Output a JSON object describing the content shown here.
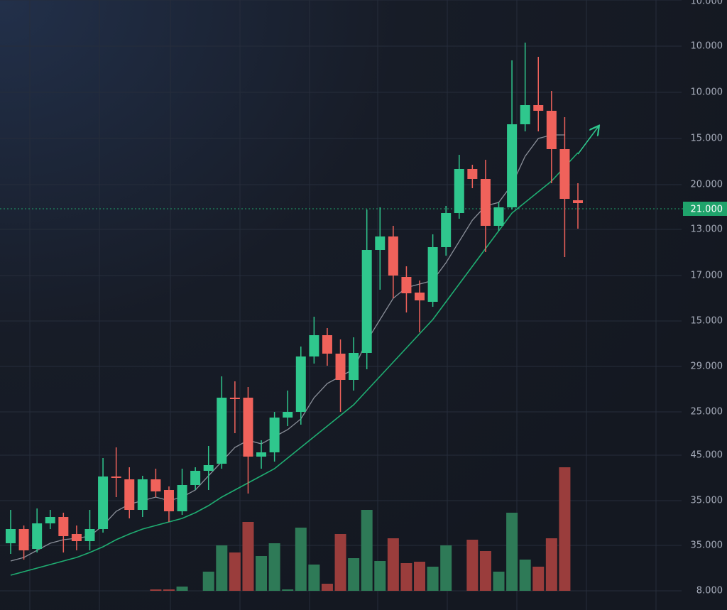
{
  "chart_data": {
    "type": "candlestick",
    "categories": [
      null,
      null,
      null,
      null,
      null,
      null,
      null,
      null,
      null,
      null,
      null,
      null,
      null,
      null,
      null,
      null,
      null,
      null,
      null,
      null,
      null,
      null,
      null,
      null,
      null,
      null,
      null,
      null,
      null,
      null,
      null,
      null,
      null,
      null,
      null,
      null,
      null,
      null,
      null,
      null,
      null,
      null,
      null,
      null
    ],
    "open": [
      95,
      115,
      87,
      123,
      132,
      108,
      98,
      115,
      189,
      185,
      142,
      185,
      170,
      140,
      177,
      197,
      207,
      300,
      300,
      217,
      223,
      272,
      280,
      358,
      388,
      362,
      325,
      363,
      508,
      527,
      470,
      448,
      435,
      512,
      560,
      622,
      608,
      542,
      568,
      685,
      712,
      704,
      650,
      578
    ],
    "high": [
      142,
      120,
      144,
      142,
      138,
      120,
      142,
      215,
      230,
      202,
      190,
      200,
      175,
      200,
      202,
      232,
      330,
      323,
      315,
      240,
      280,
      310,
      372,
      414,
      398,
      382,
      385,
      565,
      568,
      542,
      485,
      465,
      530,
      570,
      642,
      628,
      635,
      575,
      775,
      800,
      780,
      732,
      695,
      602
    ],
    "low": [
      80,
      72,
      82,
      115,
      82,
      85,
      85,
      110,
      160,
      130,
      132,
      160,
      125,
      135,
      170,
      170,
      200,
      250,
      165,
      200,
      210,
      260,
      262,
      348,
      345,
      280,
      310,
      340,
      452,
      440,
      420,
      392,
      428,
      500,
      552,
      595,
      505,
      535,
      565,
      675,
      675,
      602,
      498,
      538
    ],
    "close": [
      115,
      85,
      123,
      132,
      105,
      98,
      115,
      189,
      187,
      142,
      185,
      168,
      140,
      177,
      197,
      205,
      300,
      298,
      217,
      223,
      272,
      280,
      358,
      388,
      362,
      325,
      363,
      508,
      527,
      472,
      447,
      437,
      512,
      560,
      622,
      608,
      542,
      568,
      685,
      712,
      704,
      650,
      580,
      574
    ],
    "ylim": [
      0,
      860
    ],
    "up_color": "#2fc78d",
    "down_color": "#f0625b",
    "ma_series": [
      {
        "color": "#8a8f99",
        "values": [
          70,
          75,
          85,
          95,
          100,
          102,
          105,
          120,
          140,
          150,
          155,
          160,
          155,
          160,
          170,
          190,
          210,
          230,
          240,
          235,
          245,
          255,
          270,
          300,
          320,
          330,
          340,
          380,
          410,
          440,
          455,
          460,
          465,
          490,
          520,
          550,
          570,
          575,
          600,
          640,
          665,
          670,
          670,
          null
        ]
      },
      {
        "color": "#1fae72",
        "values": [
          50,
          55,
          60,
          65,
          70,
          75,
          82,
          90,
          100,
          108,
          115,
          120,
          125,
          130,
          138,
          148,
          160,
          170,
          180,
          190,
          200,
          215,
          230,
          245,
          260,
          275,
          290,
          310,
          330,
          350,
          370,
          390,
          410,
          435,
          460,
          485,
          510,
          535,
          560,
          575,
          590,
          605,
          625,
          645
        ]
      }
    ],
    "volume": [
      null,
      null,
      null,
      null,
      null,
      null,
      null,
      null,
      null,
      null,
      null,
      2,
      2,
      6,
      null,
      27,
      64,
      54,
      97,
      49,
      67,
      2,
      89,
      37,
      10,
      80,
      46,
      114,
      42,
      74,
      39,
      41,
      34,
      64,
      null,
      72,
      56,
      27,
      110,
      44,
      34,
      74,
      174,
      null
    ],
    "volume_ylim": [
      0,
      200
    ],
    "volume_up_color": "#2e7a57",
    "volume_down_color": "#9a3d3c",
    "price_labels": [
      "10.000",
      "10.000",
      "10.000",
      "15.000",
      "20.000",
      "21.000",
      "13.000",
      "17.000",
      "15.000",
      "29.000",
      "25.000",
      "45.000",
      "35.000",
      "35.000",
      "8.000"
    ],
    "highlight_color": "#1fa36b"
  }
}
